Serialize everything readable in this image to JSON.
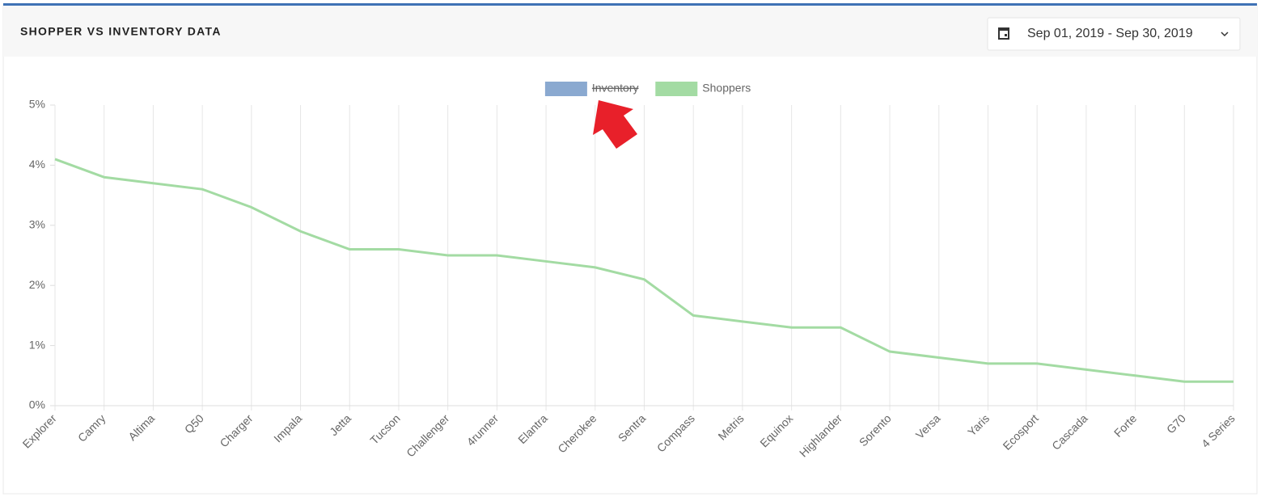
{
  "header": {
    "title": "SHOPPER VS INVENTORY DATA",
    "date_range": "Sep 01, 2019 - Sep 30, 2019"
  },
  "chart_data": {
    "type": "line",
    "categories": [
      "Explorer",
      "Camry",
      "Altima",
      "Q50",
      "Charger",
      "Impala",
      "Jetta",
      "Tucson",
      "Challenger",
      "4runner",
      "Elantra",
      "Cherokee",
      "Sentra",
      "Compass",
      "Metris",
      "Equinox",
      "Highlander",
      "Sorento",
      "Versa",
      "Yaris",
      "Ecosport",
      "Cascada",
      "Forte",
      "G70",
      "4 Series"
    ],
    "series": [
      {
        "name": "Inventory",
        "color": "#8aa9d0",
        "hidden": true,
        "values": [
          null,
          null,
          null,
          null,
          null,
          null,
          null,
          null,
          null,
          null,
          null,
          null,
          null,
          null,
          null,
          null,
          null,
          null,
          null,
          null,
          null,
          null,
          null,
          null,
          null
        ]
      },
      {
        "name": "Shoppers",
        "color": "#a3dba3",
        "hidden": false,
        "values": [
          4.1,
          3.8,
          3.7,
          3.6,
          3.3,
          2.9,
          2.6,
          2.6,
          2.5,
          2.5,
          2.4,
          2.3,
          2.1,
          1.5,
          1.4,
          1.3,
          1.3,
          0.9,
          0.8,
          0.7,
          0.7,
          0.6,
          0.5,
          0.4,
          0.4
        ]
      }
    ],
    "ylim": [
      0,
      5
    ],
    "yticks": [
      {
        "value": 0,
        "label": "0%"
      },
      {
        "value": 1,
        "label": "1%"
      },
      {
        "value": 2,
        "label": "2%"
      },
      {
        "value": 3,
        "label": "3%"
      },
      {
        "value": 4,
        "label": "4%"
      },
      {
        "value": 5,
        "label": "5%"
      }
    ],
    "grid": true,
    "legend": "top"
  }
}
